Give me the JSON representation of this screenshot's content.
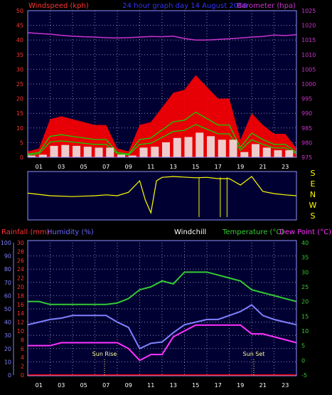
{
  "colors": {
    "wind": "#ff0000",
    "gust_green": "#00e000",
    "wind_white": "#f0f0f0",
    "barometer": "#cc33cc",
    "direction": "#ffff00",
    "temperature": "#33cc33",
    "humidity": "#8080ff",
    "dewpoint": "#ff33ff",
    "rainfall": "#ff0000"
  },
  "top_panel": {
    "title_left": "Windspeed (kph)",
    "title_center": "24 hour graph day  14 August 2008",
    "title_right": "Barometer (hpa)",
    "left_ticks": [
      "0",
      "5",
      "10",
      "15",
      "20",
      "25",
      "30",
      "35",
      "40",
      "45",
      "50"
    ],
    "right_ticks": [
      "975",
      "980",
      "985",
      "990",
      "995",
      "1000",
      "1005",
      "1010",
      "1015",
      "1020",
      "1025"
    ]
  },
  "x_ticks": [
    "01",
    "03",
    "05",
    "07",
    "09",
    "11",
    "13",
    "15",
    "17",
    "19",
    "21",
    "23"
  ],
  "direction_panel": {
    "compass": [
      "S",
      "E",
      "N",
      "W",
      "S"
    ]
  },
  "bottom_panel": {
    "label_rain": "Rainfall (mm)",
    "label_humidity": "Humidity (%)",
    "label_windchill": "Windchill",
    "label_temperature": "Temperature (°C)",
    "label_dewpoint": "Dew Point (°C)",
    "humidity_ticks": [
      "0",
      "10",
      "20",
      "30",
      "40",
      "50",
      "60",
      "70",
      "80",
      "90",
      "100"
    ],
    "rain_ticks": [
      "0",
      "2",
      "4",
      "6",
      "8",
      "10",
      "12",
      "14",
      "16",
      "18",
      "20",
      "22",
      "24",
      "26",
      "28",
      "30"
    ],
    "temp_ticks": [
      "-5",
      "0",
      "5",
      "10",
      "15",
      "20",
      "25",
      "30",
      "35",
      "40"
    ],
    "sunrise": "Sun Rise",
    "sunset": "Sun Set"
  },
  "chart_data": [
    {
      "type": "area",
      "title": "24 hour graph day  14 August 2008",
      "ylabel": "Windspeed (kph)",
      "y2label": "Barometer (hpa)",
      "ylim": [
        0,
        50
      ],
      "y2lim": [
        975,
        1025
      ],
      "x_range_hours": [
        0,
        24
      ],
      "series": [
        {
          "name": "Windspeed (kph)",
          "axis": "left",
          "x": [
            0,
            1,
            2,
            3,
            4,
            5,
            6,
            7,
            8,
            9,
            10,
            11,
            12,
            13,
            14,
            15,
            16,
            17,
            18,
            19,
            20,
            21,
            22,
            23,
            24
          ],
          "values": [
            2,
            3,
            13,
            14,
            13,
            12,
            11,
            11,
            3,
            2,
            11,
            12,
            17,
            22,
            23,
            28,
            24,
            20,
            20,
            6,
            15,
            11,
            8,
            8,
            3
          ]
        },
        {
          "name": "Barometer (hpa)",
          "axis": "right",
          "x": [
            0,
            1,
            2,
            3,
            4,
            5,
            6,
            7,
            8,
            9,
            10,
            11,
            12,
            13,
            14,
            15,
            16,
            17,
            18,
            19,
            20,
            21,
            22,
            23,
            24
          ],
          "values": [
            1017.5,
            1017.2,
            1017,
            1016.6,
            1016.3,
            1016.1,
            1016,
            1015.8,
            1015.7,
            1015.8,
            1016,
            1016.2,
            1016.1,
            1016.3,
            1015.5,
            1015,
            1015,
            1015.2,
            1015.4,
            1015.7,
            1016,
            1016.2,
            1016.7,
            1016.5,
            1016.8
          ]
        }
      ]
    },
    {
      "type": "line",
      "compass_axis": [
        "S",
        "E",
        "N",
        "W",
        "S"
      ],
      "series": [
        {
          "name": "Wind direction",
          "x": [
            0,
            2,
            4,
            6,
            7,
            8,
            9,
            10,
            10.5,
            11,
            11.5,
            12,
            13,
            15,
            16,
            17,
            18,
            19,
            20,
            21,
            22,
            23,
            24
          ],
          "values": [
            0.56,
            0.5,
            0.48,
            0.5,
            0.52,
            0.5,
            0.58,
            0.85,
            0.4,
            0.1,
            0.85,
            0.93,
            0.95,
            0.92,
            0.93,
            0.9,
            0.9,
            0.75,
            0.95,
            0.6,
            0.55,
            0.52,
            0.5
          ]
        }
      ]
    },
    {
      "type": "line",
      "xlabel": "",
      "ylim_humidity": [
        0,
        100
      ],
      "ylim_rain": [
        0,
        30
      ],
      "ylim_temperature": [
        -5,
        40
      ],
      "series": [
        {
          "name": "Temperature (°C)",
          "axis": "temperature",
          "x": [
            0,
            1,
            2,
            3,
            4,
            5,
            6,
            7,
            8,
            9,
            10,
            11,
            12,
            13,
            14,
            15,
            16,
            17,
            18,
            19,
            20,
            21,
            22,
            23,
            24
          ],
          "values": [
            20,
            20,
            19,
            19,
            19,
            19,
            19,
            19,
            19.5,
            21,
            24,
            25,
            27,
            26,
            30,
            30,
            30,
            29,
            28,
            27,
            24,
            23,
            22,
            21,
            20
          ]
        },
        {
          "name": "Humidity (%)",
          "axis": "humidity",
          "x": [
            0,
            1,
            2,
            3,
            4,
            5,
            6,
            7,
            8,
            9,
            10,
            11,
            12,
            13,
            14,
            15,
            16,
            17,
            18,
            19,
            20,
            21,
            22,
            23,
            24
          ],
          "values": [
            38,
            40,
            42,
            43,
            45,
            45,
            45,
            45,
            40,
            36,
            20,
            24,
            25,
            32,
            38,
            40,
            42,
            42,
            45,
            48,
            53,
            45,
            42,
            40,
            38
          ]
        },
        {
          "name": "Dew Point (°C)",
          "axis": "temperature",
          "x": [
            0,
            1,
            2,
            3,
            4,
            5,
            6,
            7,
            8,
            9,
            10,
            11,
            12,
            13,
            14,
            15,
            16,
            17,
            18,
            19,
            20,
            21,
            22,
            23,
            24
          ],
          "values": [
            5,
            5,
            5,
            6,
            6,
            6,
            6,
            6,
            6,
            4,
            0,
            2,
            2,
            8,
            10,
            12,
            12,
            12,
            12,
            12,
            9,
            9,
            8,
            7,
            6
          ]
        },
        {
          "name": "Rainfall (mm)",
          "axis": "rain",
          "x": [
            0,
            24
          ],
          "values": [
            0,
            0
          ]
        }
      ]
    }
  ]
}
